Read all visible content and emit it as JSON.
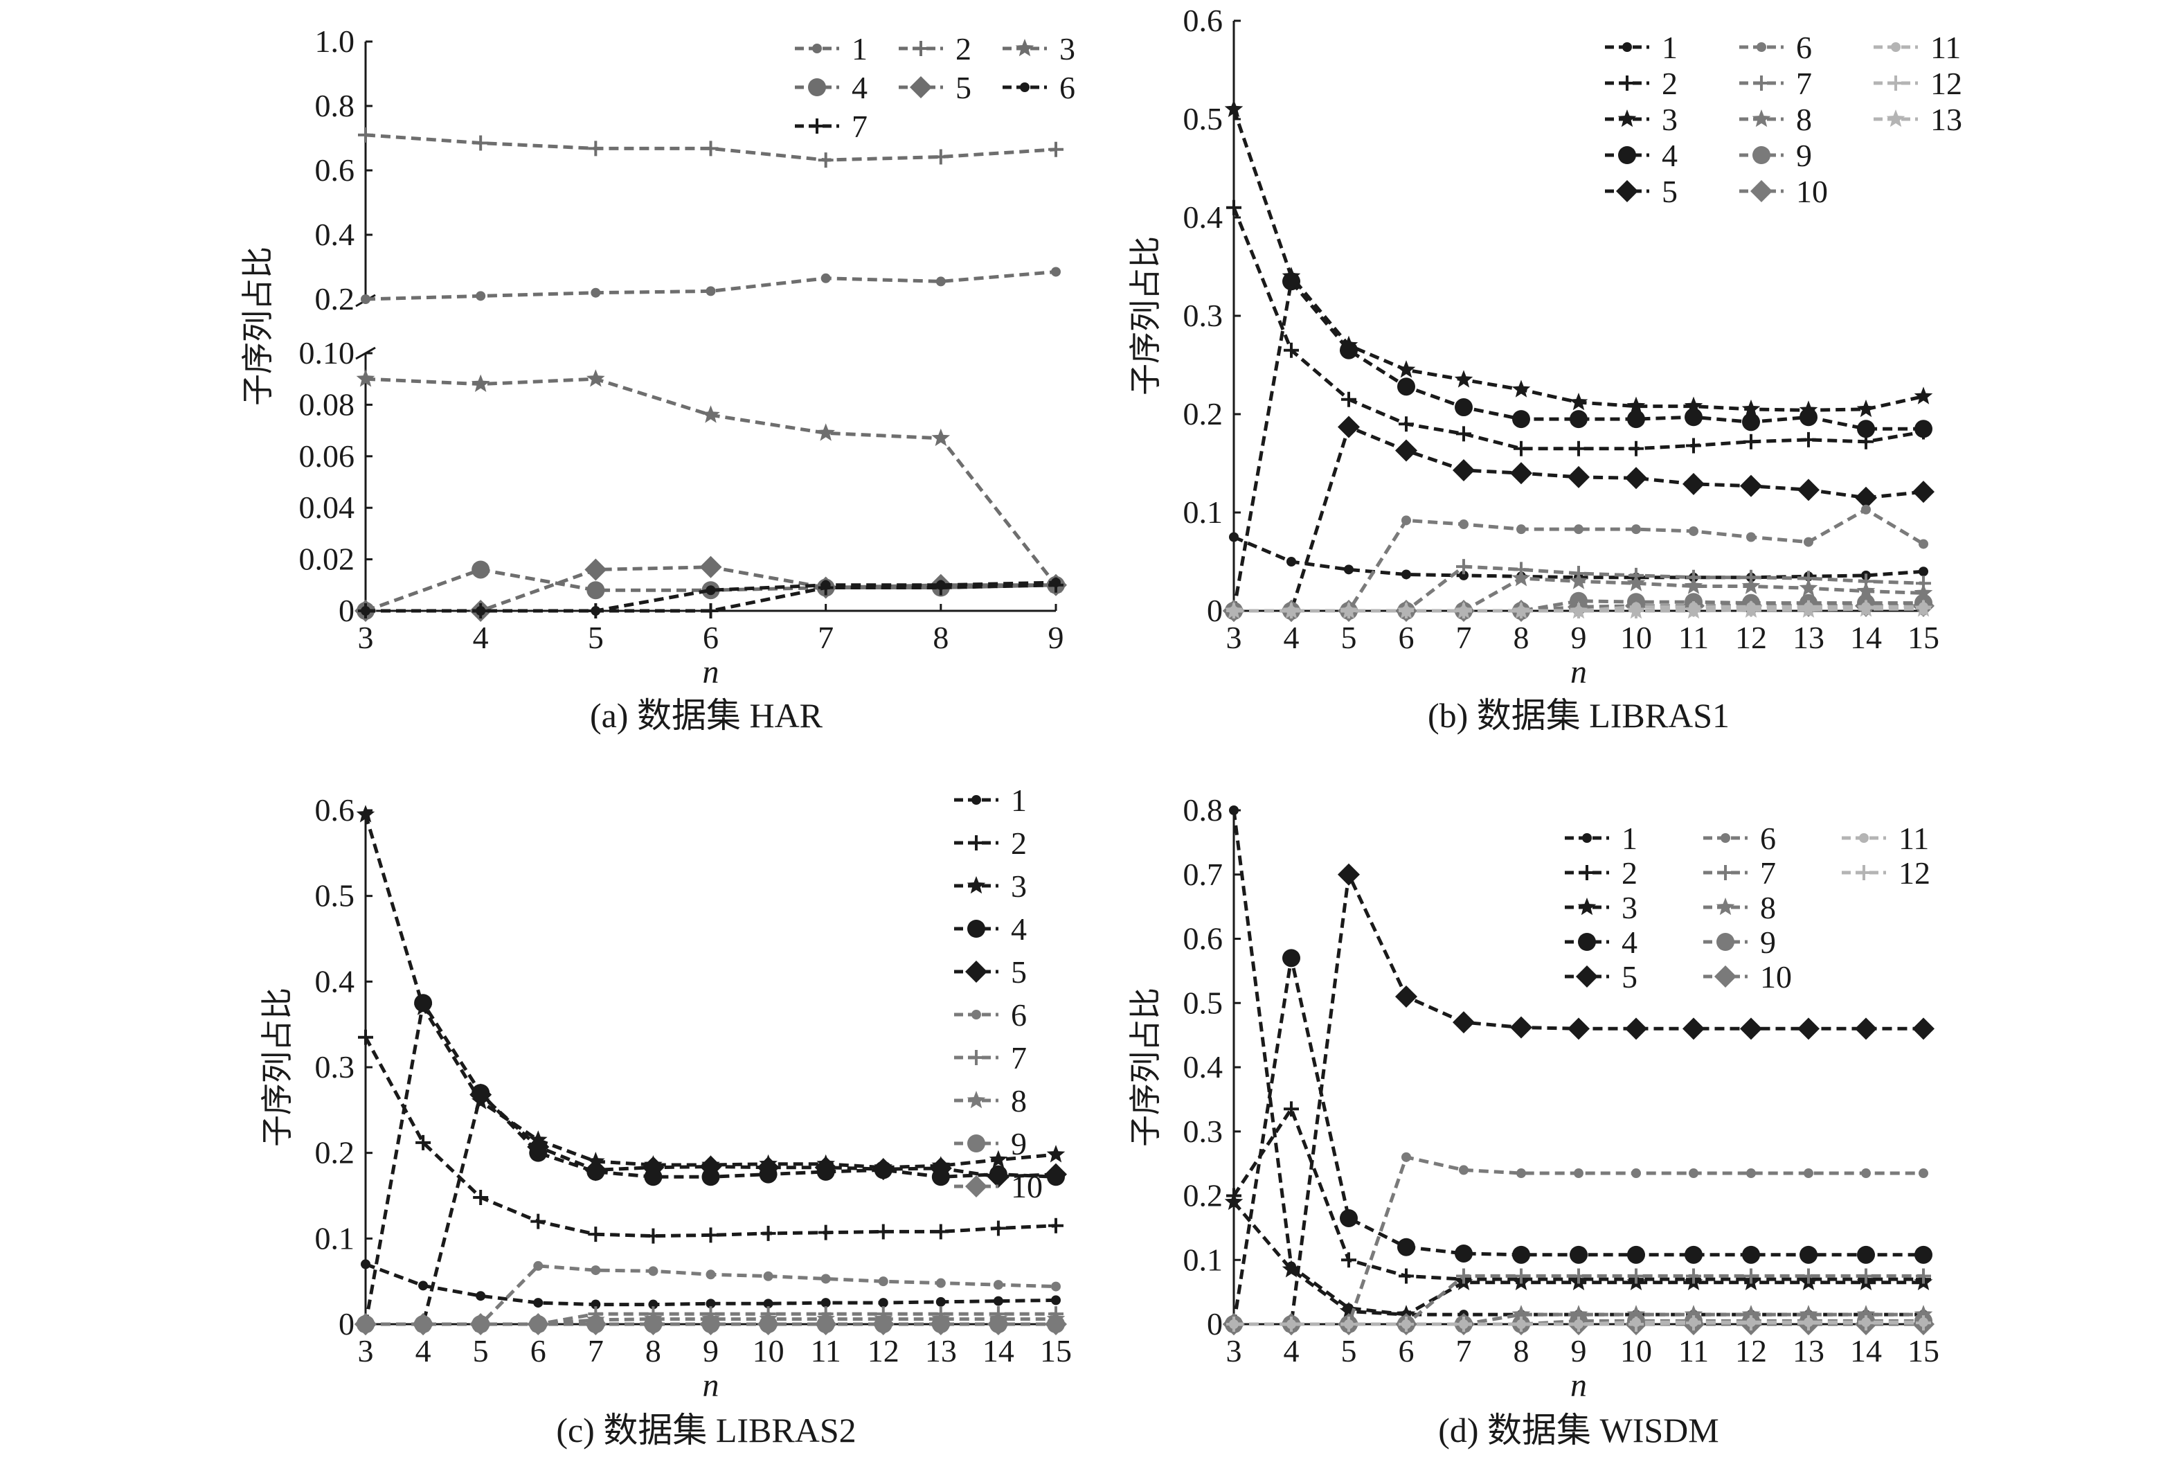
{
  "figure": {
    "panels": [
      {
        "id": "a",
        "caption": "(a) 数据集 HAR"
      },
      {
        "id": "b",
        "caption": "(b) 数据集 LIBRAS1"
      },
      {
        "id": "c",
        "caption": "(c) 数据集 LIBRAS2"
      },
      {
        "id": "d",
        "caption": "(d) 数据集 WISDM"
      }
    ]
  },
  "chart_data": [
    {
      "id": "a",
      "type": "line",
      "title": "(a) 数据集 HAR",
      "xlabel": "n",
      "ylabel": "子序列占比",
      "x": [
        3,
        4,
        5,
        6,
        7,
        8,
        9
      ],
      "xticks": [
        "3",
        "4",
        "5",
        "6",
        "7",
        "8",
        "9"
      ],
      "axis_break": true,
      "ylim_lower": [
        0,
        0.1
      ],
      "ylim_upper": [
        0.2,
        1.0
      ],
      "yticks_lower": [
        "0",
        "0.02",
        "0.04",
        "0.06",
        "0.08",
        "0.10"
      ],
      "yticks_upper": [
        "0.2",
        "0.4",
        "0.6",
        "0.8",
        "1.0"
      ],
      "legend_position": "top-right",
      "series": [
        {
          "name": "1",
          "marker": "dot",
          "color": "#6e6e6e",
          "values": [
            0.2,
            0.21,
            0.22,
            0.225,
            0.265,
            0.255,
            0.285
          ]
        },
        {
          "name": "2",
          "marker": "plus",
          "color": "#6e6e6e",
          "values": [
            0.71,
            0.685,
            0.668,
            0.668,
            0.632,
            0.642,
            0.665
          ]
        },
        {
          "name": "3",
          "marker": "star",
          "color": "#6e6e6e",
          "values": [
            0.09,
            0.088,
            0.09,
            0.076,
            0.069,
            0.067,
            0.01
          ]
        },
        {
          "name": "4",
          "marker": "circle",
          "color": "#6e6e6e",
          "values": [
            0,
            0.016,
            0.008,
            0.008,
            0.009,
            0.009,
            0.01
          ]
        },
        {
          "name": "5",
          "marker": "diamond",
          "color": "#6e6e6e",
          "values": [
            0,
            0,
            0.016,
            0.017,
            0.009,
            0.01,
            0.01
          ]
        },
        {
          "name": "6",
          "marker": "dot",
          "color": "#1a1a1a",
          "values": [
            0,
            0,
            0,
            0.008,
            0.01,
            0.01,
            0.011
          ]
        },
        {
          "name": "7",
          "marker": "plus",
          "color": "#1a1a1a",
          "values": [
            0,
            0,
            0,
            0,
            0.009,
            0.009,
            0.01
          ]
        }
      ]
    },
    {
      "id": "b",
      "type": "line",
      "title": "(b) 数据集 LIBRAS1",
      "xlabel": "n",
      "ylabel": "子序列占比",
      "x": [
        3,
        4,
        5,
        6,
        7,
        8,
        9,
        10,
        11,
        12,
        13,
        14,
        15
      ],
      "xticks": [
        "3",
        "4",
        "5",
        "6",
        "7",
        "8",
        "9",
        "10",
        "11",
        "12",
        "13",
        "14",
        "15"
      ],
      "ylim": [
        0,
        0.6
      ],
      "yticks": [
        "0",
        "0.1",
        "0.2",
        "0.3",
        "0.4",
        "0.5",
        "0.6"
      ],
      "legend_position": "top-right",
      "series": [
        {
          "name": "1",
          "marker": "dot",
          "color": "#1a1a1a",
          "values": [
            0.075,
            0.05,
            0.042,
            0.037,
            0.036,
            0.035,
            0.034,
            0.034,
            0.034,
            0.034,
            0.035,
            0.036,
            0.04
          ]
        },
        {
          "name": "2",
          "marker": "plus",
          "color": "#1a1a1a",
          "values": [
            0.41,
            0.265,
            0.215,
            0.19,
            0.18,
            0.165,
            0.165,
            0.165,
            0.168,
            0.172,
            0.174,
            0.172,
            0.182
          ]
        },
        {
          "name": "3",
          "marker": "star",
          "color": "#1a1a1a",
          "values": [
            0.51,
            0.34,
            0.27,
            0.245,
            0.235,
            0.225,
            0.212,
            0.208,
            0.208,
            0.205,
            0.204,
            0.205,
            0.218
          ]
        },
        {
          "name": "4",
          "marker": "circle",
          "color": "#1a1a1a",
          "values": [
            0,
            0.335,
            0.265,
            0.228,
            0.207,
            0.195,
            0.195,
            0.195,
            0.197,
            0.192,
            0.197,
            0.185,
            0.185
          ]
        },
        {
          "name": "5",
          "marker": "diamond",
          "color": "#1a1a1a",
          "values": [
            0,
            0,
            0.187,
            0.163,
            0.143,
            0.14,
            0.136,
            0.135,
            0.129,
            0.127,
            0.123,
            0.115,
            0.121
          ]
        },
        {
          "name": "6",
          "marker": "dot",
          "color": "#7a7a7a",
          "values": [
            0,
            0,
            0,
            0.092,
            0.088,
            0.083,
            0.083,
            0.083,
            0.081,
            0.075,
            0.07,
            0.103,
            0.068
          ]
        },
        {
          "name": "7",
          "marker": "plus",
          "color": "#7a7a7a",
          "values": [
            0,
            0,
            0,
            0,
            0.045,
            0.042,
            0.038,
            0.036,
            0.034,
            0.034,
            0.033,
            0.03,
            0.028
          ]
        },
        {
          "name": "8",
          "marker": "star",
          "color": "#7a7a7a",
          "values": [
            0,
            0,
            0,
            0,
            0,
            0.033,
            0.03,
            0.028,
            0.025,
            0.025,
            0.023,
            0.02,
            0.018
          ]
        },
        {
          "name": "9",
          "marker": "circle",
          "color": "#7a7a7a",
          "values": [
            0,
            0,
            0,
            0,
            0,
            0,
            0.01,
            0.009,
            0.009,
            0.008,
            0.008,
            0.008,
            0.008
          ]
        },
        {
          "name": "10",
          "marker": "diamond",
          "color": "#7a7a7a",
          "values": [
            0,
            0,
            0,
            0,
            0,
            0,
            0.004,
            0.005,
            0.005,
            0.005,
            0.005,
            0.005,
            0.005
          ]
        },
        {
          "name": "11",
          "marker": "dot",
          "color": "#b4b4b4",
          "values": [
            0,
            0,
            0,
            0,
            0,
            0,
            0,
            0.004,
            0.004,
            0.004,
            0.004,
            0.004,
            0.004
          ]
        },
        {
          "name": "12",
          "marker": "plus",
          "color": "#b4b4b4",
          "values": [
            0,
            0,
            0,
            0,
            0,
            0,
            0,
            0,
            0.002,
            0.002,
            0.003,
            0.003,
            0.003
          ]
        },
        {
          "name": "13",
          "marker": "star",
          "color": "#b4b4b4",
          "values": [
            0,
            0,
            0,
            0,
            0,
            0,
            0,
            0,
            0,
            0.001,
            0.001,
            0.002,
            0.002
          ]
        }
      ]
    },
    {
      "id": "c",
      "type": "line",
      "title": "(c) 数据集 LIBRAS2",
      "xlabel": "n",
      "ylabel": "子序列占比",
      "x": [
        3,
        4,
        5,
        6,
        7,
        8,
        9,
        10,
        11,
        12,
        13,
        14,
        15
      ],
      "xticks": [
        "3",
        "4",
        "5",
        "6",
        "7",
        "8",
        "9",
        "10",
        "11",
        "12",
        "13",
        "14",
        "15"
      ],
      "ylim": [
        0,
        0.6
      ],
      "yticks": [
        "0",
        "0.1",
        "0.2",
        "0.3",
        "0.4",
        "0.5",
        "0.6"
      ],
      "legend_position": "top-right",
      "series": [
        {
          "name": "1",
          "marker": "dot",
          "color": "#1a1a1a",
          "values": [
            0.07,
            0.045,
            0.033,
            0.025,
            0.023,
            0.023,
            0.024,
            0.024,
            0.025,
            0.025,
            0.026,
            0.027,
            0.028
          ]
        },
        {
          "name": "2",
          "marker": "plus",
          "color": "#1a1a1a",
          "values": [
            0.335,
            0.212,
            0.148,
            0.12,
            0.105,
            0.103,
            0.104,
            0.106,
            0.107,
            0.108,
            0.108,
            0.112,
            0.115
          ]
        },
        {
          "name": "3",
          "marker": "star",
          "color": "#1a1a1a",
          "values": [
            0.595,
            0.37,
            0.26,
            0.215,
            0.19,
            0.186,
            0.186,
            0.187,
            0.187,
            0.183,
            0.185,
            0.192,
            0.198
          ]
        },
        {
          "name": "4",
          "marker": "circle",
          "color": "#1a1a1a",
          "values": [
            0,
            0.375,
            0.27,
            0.2,
            0.178,
            0.172,
            0.172,
            0.175,
            0.178,
            0.18,
            0.172,
            0.175,
            0.172
          ]
        },
        {
          "name": "5",
          "marker": "diamond",
          "color": "#1a1a1a",
          "values": [
            0,
            0,
            0.268,
            0.207,
            0.18,
            0.183,
            0.184,
            0.183,
            0.183,
            0.181,
            0.182,
            0.172,
            0.175
          ]
        },
        {
          "name": "6",
          "marker": "dot",
          "color": "#7a7a7a",
          "values": [
            0,
            0,
            0,
            0.068,
            0.063,
            0.062,
            0.058,
            0.056,
            0.053,
            0.05,
            0.048,
            0.046,
            0.044
          ]
        },
        {
          "name": "7",
          "marker": "plus",
          "color": "#7a7a7a",
          "values": [
            0,
            0,
            0,
            0,
            0.012,
            0.012,
            0.012,
            0.012,
            0.012,
            0.012,
            0.012,
            0.012,
            0.012
          ]
        },
        {
          "name": "8",
          "marker": "star",
          "color": "#7a7a7a",
          "values": [
            0,
            0,
            0,
            0,
            0.005,
            0.006,
            0.006,
            0.006,
            0.006,
            0.006,
            0.006,
            0.006,
            0.006
          ]
        },
        {
          "name": "9",
          "marker": "circle",
          "color": "#7a7a7a",
          "values": [
            0,
            0,
            0,
            0,
            0,
            0,
            0,
            0,
            0,
            0,
            0,
            0,
            0
          ]
        },
        {
          "name": "10",
          "marker": "diamond",
          "color": "#7a7a7a",
          "values": [
            0,
            0,
            0,
            0,
            0,
            0,
            0,
            0,
            0,
            0,
            0,
            0,
            0
          ]
        }
      ]
    },
    {
      "id": "d",
      "type": "line",
      "title": "(d) 数据集 WISDM",
      "xlabel": "n",
      "ylabel": "子序列占比",
      "x": [
        3,
        4,
        5,
        6,
        7,
        8,
        9,
        10,
        11,
        12,
        13,
        14,
        15
      ],
      "xticks": [
        "3",
        "4",
        "5",
        "6",
        "7",
        "8",
        "9",
        "10",
        "11",
        "12",
        "13",
        "14",
        "15"
      ],
      "ylim": [
        0,
        0.8
      ],
      "yticks": [
        "0",
        "0.1",
        "0.2",
        "0.3",
        "0.4",
        "0.5",
        "0.6",
        "0.7",
        "0.8"
      ],
      "legend_position": "top-right",
      "series": [
        {
          "name": "1",
          "marker": "dot",
          "color": "#1a1a1a",
          "values": [
            0.8,
            0.09,
            0.025,
            0.015,
            0.015,
            0.015,
            0.015,
            0.015,
            0.015,
            0.015,
            0.015,
            0.015,
            0.015
          ]
        },
        {
          "name": "2",
          "marker": "plus",
          "color": "#1a1a1a",
          "values": [
            0.2,
            0.335,
            0.1,
            0.075,
            0.07,
            0.07,
            0.07,
            0.07,
            0.07,
            0.07,
            0.07,
            0.07,
            0.07
          ]
        },
        {
          "name": "3",
          "marker": "star",
          "color": "#1a1a1a",
          "values": [
            0.19,
            0.085,
            0.02,
            0.015,
            0.065,
            0.065,
            0.065,
            0.065,
            0.065,
            0.065,
            0.065,
            0.065,
            0.065
          ]
        },
        {
          "name": "4",
          "marker": "circle",
          "color": "#1a1a1a",
          "values": [
            0,
            0.57,
            0.165,
            0.12,
            0.11,
            0.108,
            0.108,
            0.108,
            0.108,
            0.108,
            0.108,
            0.108,
            0.108
          ]
        },
        {
          "name": "5",
          "marker": "diamond",
          "color": "#1a1a1a",
          "values": [
            0,
            0,
            0.7,
            0.51,
            0.47,
            0.462,
            0.46,
            0.46,
            0.46,
            0.46,
            0.46,
            0.46,
            0.46
          ]
        },
        {
          "name": "6",
          "marker": "dot",
          "color": "#7a7a7a",
          "values": [
            0,
            0,
            0,
            0.26,
            0.24,
            0.235,
            0.235,
            0.235,
            0.235,
            0.235,
            0.235,
            0.235,
            0.235
          ]
        },
        {
          "name": "7",
          "marker": "plus",
          "color": "#7a7a7a",
          "values": [
            0,
            0,
            0,
            0,
            0.075,
            0.075,
            0.075,
            0.075,
            0.075,
            0.075,
            0.075,
            0.075,
            0.075
          ]
        },
        {
          "name": "8",
          "marker": "star",
          "color": "#7a7a7a",
          "values": [
            0,
            0,
            0,
            0,
            0,
            0.015,
            0.015,
            0.015,
            0.015,
            0.015,
            0.015,
            0.015,
            0.015
          ]
        },
        {
          "name": "9",
          "marker": "circle",
          "color": "#7a7a7a",
          "values": [
            0,
            0,
            0,
            0,
            0,
            0,
            0.005,
            0.005,
            0.005,
            0.005,
            0.005,
            0.005,
            0.005
          ]
        },
        {
          "name": "10",
          "marker": "diamond",
          "color": "#7a7a7a",
          "values": [
            0,
            0,
            0,
            0,
            0,
            0,
            0,
            0,
            0,
            0,
            0,
            0,
            0
          ]
        },
        {
          "name": "11",
          "marker": "dot",
          "color": "#b4b4b4",
          "values": [
            0,
            0,
            0,
            0,
            0,
            0,
            0,
            0.003,
            0.003,
            0.003,
            0.003,
            0.003,
            0.003
          ]
        },
        {
          "name": "12",
          "marker": "plus",
          "color": "#b4b4b4",
          "values": [
            0,
            0,
            0,
            0,
            0,
            0,
            0,
            0,
            0.002,
            0.002,
            0.002,
            0.002,
            0.002
          ]
        }
      ]
    }
  ]
}
